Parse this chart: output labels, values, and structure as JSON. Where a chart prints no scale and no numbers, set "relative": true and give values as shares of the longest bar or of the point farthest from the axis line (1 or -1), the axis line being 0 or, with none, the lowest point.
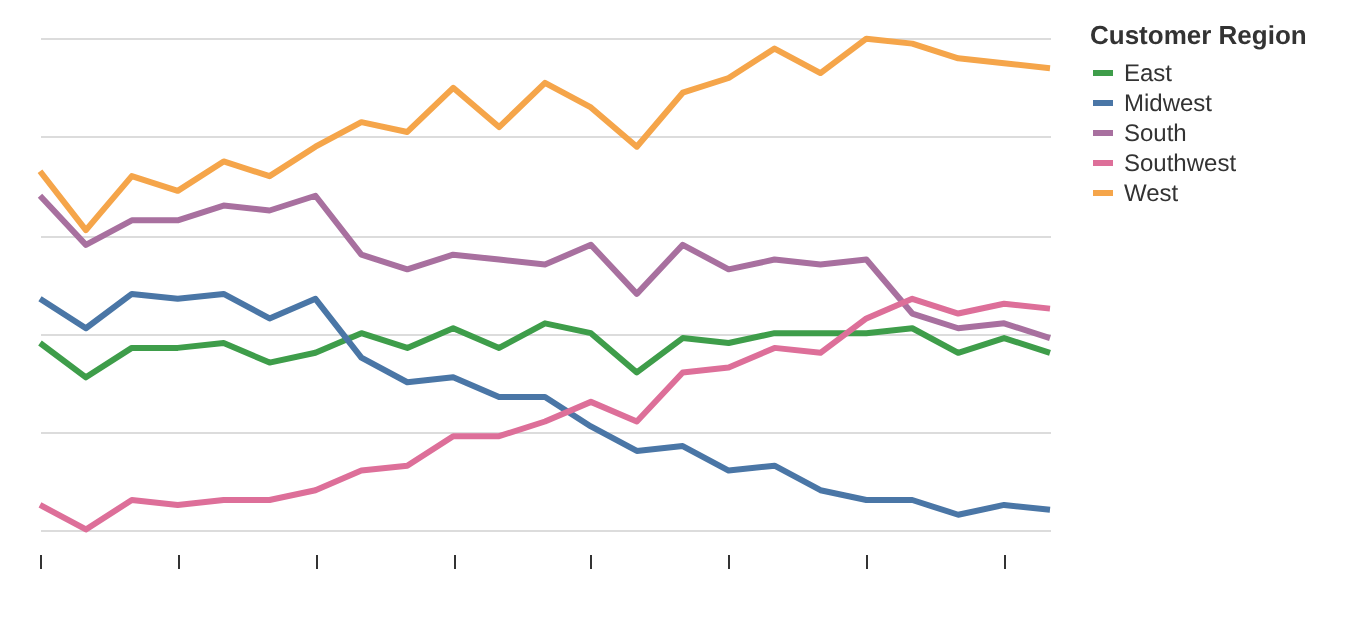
{
  "chart_data": {
    "type": "line",
    "relative": true,
    "legend_title": "Customer Region",
    "legend": "right",
    "grid": "y",
    "line_style": "solid",
    "marker": "none",
    "categories": [
      null,
      null,
      null,
      null,
      null,
      null,
      null,
      null,
      null,
      null,
      null,
      null,
      null,
      null,
      null,
      null,
      null,
      null,
      null,
      null,
      null,
      null,
      null
    ],
    "series": [
      {
        "name": "East",
        "color": "#3e9d4a",
        "values": [
          0.38,
          0.31,
          0.37,
          0.37,
          0.38,
          0.34,
          0.36,
          0.4,
          0.37,
          0.41,
          0.37,
          0.42,
          0.4,
          0.32,
          0.39,
          0.38,
          0.4,
          0.4,
          0.4,
          0.41,
          0.36,
          0.39,
          0.36
        ]
      },
      {
        "name": "Midwest",
        "color": "#4a76a6",
        "values": [
          0.47,
          0.41,
          0.48,
          0.47,
          0.48,
          0.43,
          0.47,
          0.35,
          0.3,
          0.31,
          0.27,
          0.27,
          0.21,
          0.16,
          0.17,
          0.12,
          0.13,
          0.08,
          0.06,
          0.06,
          0.03,
          0.05,
          0.04
        ]
      },
      {
        "name": "South",
        "color": "#a8709f",
        "values": [
          0.68,
          0.58,
          0.63,
          0.63,
          0.66,
          0.65,
          0.68,
          0.56,
          0.53,
          0.56,
          0.55,
          0.54,
          0.58,
          0.48,
          0.58,
          0.53,
          0.55,
          0.54,
          0.55,
          0.44,
          0.41,
          0.42,
          0.39
        ]
      },
      {
        "name": "Southwest",
        "color": "#dd6f99",
        "values": [
          0.05,
          0.0,
          0.06,
          0.05,
          0.06,
          0.06,
          0.08,
          0.12,
          0.13,
          0.19,
          0.19,
          0.22,
          0.26,
          0.22,
          0.32,
          0.33,
          0.37,
          0.36,
          0.43,
          0.47,
          0.44,
          0.46,
          0.45
        ]
      },
      {
        "name": "West",
        "color": "#f5a54a",
        "values": [
          0.73,
          0.61,
          0.72,
          0.69,
          0.75,
          0.72,
          0.78,
          0.83,
          0.81,
          0.9,
          0.82,
          0.91,
          0.86,
          0.78,
          0.89,
          0.92,
          0.98,
          0.93,
          1.0,
          0.99,
          0.96,
          0.95,
          0.94
        ]
      }
    ]
  }
}
